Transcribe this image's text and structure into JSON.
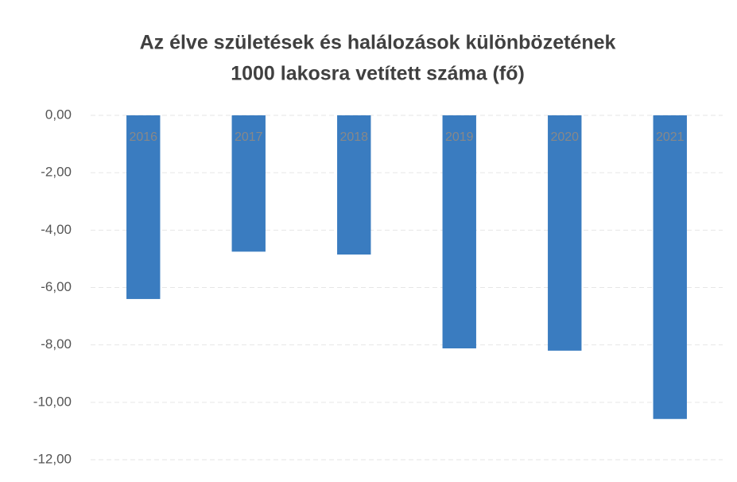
{
  "chart_data": {
    "type": "bar",
    "title": [
      "Az élve születések és halálozások különbözetének",
      "1000 lakosra vetített száma (fő)"
    ],
    "categories": [
      "2016",
      "2017",
      "2018",
      "2019",
      "2020",
      "2021"
    ],
    "values": [
      -6.4,
      -4.75,
      -4.85,
      -8.12,
      -8.2,
      -10.58
    ],
    "color": "#3a7cc0",
    "ylim": [
      -12,
      0
    ],
    "yticks": [
      {
        "value": 0,
        "label": "0,00"
      },
      {
        "value": -2,
        "label": "-2,00"
      },
      {
        "value": -4,
        "label": "-4,00"
      },
      {
        "value": -6,
        "label": "-6,00"
      },
      {
        "value": -8,
        "label": "-8,00"
      },
      {
        "value": -10,
        "label": "-10,00"
      },
      {
        "value": -12,
        "label": "-12,00"
      }
    ],
    "grid": true
  }
}
